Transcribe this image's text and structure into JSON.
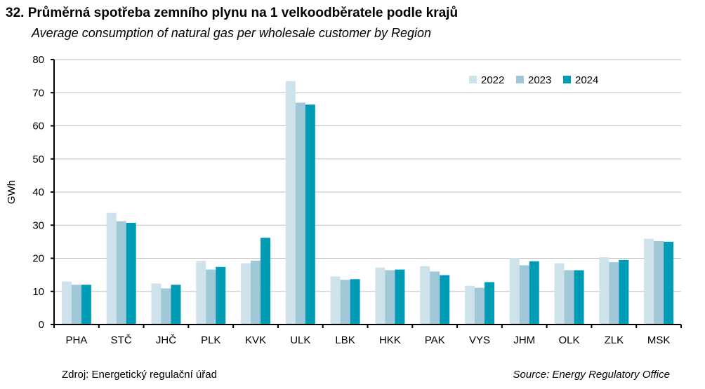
{
  "chart_data": {
    "type": "bar",
    "title": "32. Průměrná spotřeba zemního plynu na 1 velkoodběratele podle krajů",
    "subtitle": "Average consumption of natural gas per wholesale customer by Region",
    "xlabel": "",
    "ylabel": "GWh",
    "ylim": [
      0,
      80
    ],
    "yticks": [
      0,
      10,
      20,
      30,
      40,
      50,
      60,
      70,
      80
    ],
    "grid": true,
    "legend_position": "top-right",
    "categories": [
      "PHA",
      "STČ",
      "JHČ",
      "PLK",
      "KVK",
      "ULK",
      "LBK",
      "HKK",
      "PAK",
      "VYS",
      "JHM",
      "OLK",
      "ZLK",
      "MSK"
    ],
    "series": [
      {
        "name": "2022",
        "color": "#cde2ea",
        "values": [
          13.0,
          33.7,
          12.4,
          19.2,
          18.5,
          73.5,
          14.5,
          17.2,
          17.6,
          11.7,
          20.1,
          18.5,
          20.3,
          25.9
        ]
      },
      {
        "name": "2023",
        "color": "#a1c8d6",
        "values": [
          12.0,
          31.2,
          10.9,
          16.6,
          19.3,
          67.0,
          13.5,
          16.4,
          16.0,
          11.1,
          17.9,
          16.4,
          18.8,
          25.2
        ]
      },
      {
        "name": "2024",
        "color": "#009bb5",
        "values": [
          12.0,
          30.7,
          12.0,
          17.4,
          26.2,
          66.4,
          13.7,
          16.6,
          14.9,
          12.8,
          19.1,
          16.4,
          19.5,
          25.0
        ]
      }
    ]
  },
  "source_cz": "Zdroj: Energetický regulační úřad",
  "source_en": "Source: Energy Regulatory Office"
}
